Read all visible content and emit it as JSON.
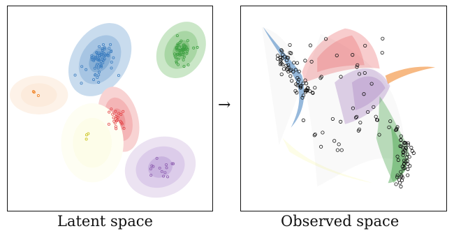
{
  "latent": {
    "caption": "Latent space"
  },
  "observed": {
    "caption": "Observed space"
  },
  "arrow": "→",
  "colors": {
    "blue": "#3f7fc0",
    "green": "#3fa043",
    "red": "#e5484b",
    "orange": "#f07f1e",
    "yellow": "#f1ee3d",
    "purple": "#8e5fb0",
    "points": "#111111"
  }
}
